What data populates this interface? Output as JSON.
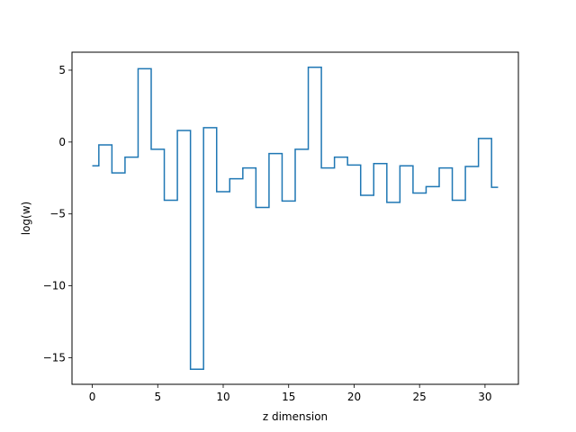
{
  "chart_data": {
    "type": "line",
    "drawstyle": "steps-mid",
    "xlabel": "z dimension",
    "ylabel": "log(w)",
    "xlim": [
      -1.55,
      32.55
    ],
    "ylim": [
      -16.85,
      6.25
    ],
    "xticks": [
      0,
      5,
      10,
      15,
      20,
      25,
      30
    ],
    "xtick_labels": [
      "0",
      "5",
      "10",
      "15",
      "20",
      "25",
      "30"
    ],
    "yticks": [
      5,
      0,
      -5,
      -10,
      -15
    ],
    "ytick_labels": [
      "5",
      "0",
      "−5",
      "−10",
      "−15"
    ],
    "grid": false,
    "series": [
      {
        "color": "#1f77b4",
        "x": [
          0,
          1,
          2,
          3,
          4,
          5,
          6,
          7,
          8,
          9,
          10,
          11,
          12,
          13,
          14,
          15,
          16,
          17,
          18,
          19,
          20,
          21,
          22,
          23,
          24,
          25,
          26,
          27,
          28,
          29,
          30,
          31
        ],
        "y": [
          -1.65,
          -0.2,
          -2.15,
          -1.05,
          5.1,
          -0.5,
          -4.05,
          0.8,
          -15.8,
          1.0,
          -3.45,
          -2.55,
          -1.8,
          -4.55,
          -0.8,
          -4.1,
          -0.5,
          5.2,
          -1.8,
          -1.05,
          -1.6,
          -3.7,
          -1.5,
          -4.2,
          -1.65,
          -3.55,
          -3.1,
          -1.8,
          -4.05,
          -1.7,
          0.25,
          -3.15
        ]
      }
    ]
  }
}
